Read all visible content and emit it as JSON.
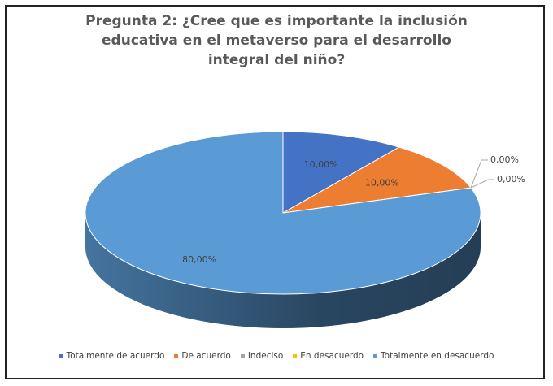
{
  "chart_data": {
    "type": "pie",
    "title": "Pregunta 2: ¿Cree que es importante la inclusión educativa en el metaverso para el desarrollo integral del niño?",
    "categories": [
      "Totalmente de acuerdo",
      "De acuerdo",
      "Indeciso",
      "En desacuerdo",
      "Totalmente en desacuerdo"
    ],
    "values": [
      10,
      10,
      0,
      0,
      80
    ],
    "value_labels": [
      "10,00%",
      "10,00%",
      "0,00%",
      "0,00%",
      "80,00%"
    ],
    "colors": [
      "#4472c4",
      "#ed7d31",
      "#a5a5a5",
      "#ffc000",
      "#5b9bd5"
    ],
    "legend": "bottom"
  }
}
